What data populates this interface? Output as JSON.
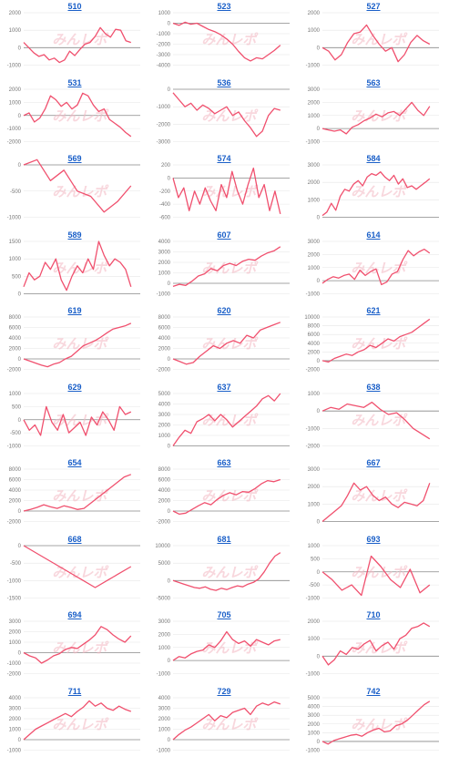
{
  "page": {
    "watermark": "みんレポ"
  },
  "style": {
    "line_color": "#f0506e",
    "title_color": "#1a5fc8",
    "zero_line": "#888888",
    "grid": "#e6e6e6"
  },
  "chart_data": [
    {
      "type": "line",
      "title": "510",
      "ylim": [
        -1000,
        2000
      ],
      "yticks": [
        -1000,
        0,
        1000,
        2000
      ],
      "values": [
        300,
        0,
        -300,
        -500,
        -400,
        -700,
        -600,
        -850,
        -700,
        -200,
        -450,
        -100,
        200,
        300,
        650,
        1150,
        800,
        600,
        1050,
        1000,
        400,
        300
      ]
    },
    {
      "type": "line",
      "title": "523",
      "ylim": [
        -4000,
        1000
      ],
      "yticks": [
        -4000,
        -3000,
        -2000,
        -1000,
        0,
        1000
      ],
      "values": [
        0,
        -200,
        100,
        -100,
        0,
        -300,
        -600,
        -800,
        -1100,
        -1500,
        -2000,
        -2700,
        -3300,
        -3600,
        -3300,
        -3400,
        -3000,
        -2600,
        -2100
      ]
    },
    {
      "type": "line",
      "title": "527",
      "ylim": [
        -1000,
        2000
      ],
      "yticks": [
        -1000,
        0,
        1000,
        2000
      ],
      "values": [
        0,
        -200,
        -700,
        -400,
        300,
        800,
        900,
        1300,
        700,
        200,
        -200,
        0,
        -800,
        -400,
        300,
        700,
        400,
        200
      ]
    },
    {
      "type": "line",
      "title": "531",
      "ylim": [
        -2000,
        2000
      ],
      "yticks": [
        -2000,
        -1000,
        0,
        1000,
        2000
      ],
      "values": [
        0,
        200,
        -500,
        -200,
        500,
        1500,
        1200,
        700,
        1000,
        500,
        800,
        1700,
        1500,
        800,
        300,
        500,
        -300,
        -600,
        -900,
        -1300,
        -1600
      ]
    },
    {
      "type": "line",
      "title": "536",
      "ylim": [
        -3000,
        0
      ],
      "yticks": [
        -3000,
        -2000,
        -1000,
        0
      ],
      "values": [
        -200,
        -600,
        -1000,
        -800,
        -1200,
        -900,
        -1100,
        -1400,
        -1200,
        -1000,
        -1500,
        -1300,
        -1800,
        -2200,
        -2700,
        -2400,
        -1500,
        -1100,
        -1200
      ]
    },
    {
      "type": "line",
      "title": "563",
      "ylim": [
        -1000,
        3000
      ],
      "yticks": [
        -1000,
        0,
        1000,
        2000,
        3000
      ],
      "values": [
        0,
        -100,
        -200,
        -100,
        -400,
        100,
        300,
        600,
        800,
        1100,
        900,
        1200,
        1300,
        1000,
        1500,
        2000,
        1400,
        1000,
        1700
      ]
    },
    {
      "type": "line",
      "title": "569",
      "ylim": [
        -1000,
        0
      ],
      "yticks": [
        -1000,
        -500,
        0
      ],
      "values": [
        0,
        100,
        -300,
        -100,
        -500,
        -600,
        -900,
        -700,
        -400
      ]
    },
    {
      "type": "line",
      "title": "574",
      "ylim": [
        -600,
        200
      ],
      "yticks": [
        -600,
        -400,
        -200,
        0,
        200
      ],
      "values": [
        0,
        -300,
        -150,
        -500,
        -200,
        -400,
        -150,
        -350,
        -500,
        -100,
        -300,
        100,
        -200,
        -400,
        -100,
        150,
        -300,
        -100,
        -500,
        -200,
        -550
      ]
    },
    {
      "type": "line",
      "title": "584",
      "ylim": [
        0,
        3000
      ],
      "yticks": [
        0,
        1000,
        2000,
        3000
      ],
      "values": [
        100,
        300,
        800,
        400,
        1200,
        1600,
        1500,
        1900,
        2100,
        1800,
        2300,
        2500,
        2400,
        2600,
        2300,
        2100,
        2400,
        1900,
        2200,
        1700,
        1800,
        1600,
        1800,
        2000,
        2200
      ]
    },
    {
      "type": "line",
      "title": "589",
      "ylim": [
        0,
        1500
      ],
      "yticks": [
        0,
        500,
        1000,
        1500
      ],
      "values": [
        200,
        600,
        400,
        500,
        900,
        700,
        1000,
        400,
        100,
        500,
        800,
        600,
        1000,
        700,
        1500,
        1100,
        800,
        1000,
        900,
        700,
        200
      ]
    },
    {
      "type": "line",
      "title": "607",
      "ylim": [
        -1000,
        4000
      ],
      "yticks": [
        -1000,
        0,
        1000,
        2000,
        3000,
        4000
      ],
      "values": [
        -300,
        -100,
        -200,
        200,
        700,
        900,
        1400,
        1200,
        1700,
        1900,
        1700,
        2100,
        2300,
        2200,
        2600,
        2900,
        3100,
        3500
      ]
    },
    {
      "type": "line",
      "title": "614",
      "ylim": [
        -1000,
        3000
      ],
      "yticks": [
        -1000,
        0,
        1000,
        2000,
        3000
      ],
      "values": [
        -200,
        100,
        300,
        200,
        400,
        500,
        100,
        800,
        400,
        700,
        900,
        -300,
        -100,
        500,
        700,
        1600,
        2300,
        1900,
        2200,
        2400,
        2100
      ]
    },
    {
      "type": "line",
      "title": "619",
      "ylim": [
        -2000,
        8000
      ],
      "yticks": [
        -2000,
        0,
        2000,
        4000,
        6000,
        8000
      ],
      "values": [
        0,
        -400,
        -800,
        -1200,
        -1500,
        -1000,
        -700,
        0,
        500,
        1500,
        2500,
        3000,
        3500,
        4200,
        5000,
        5700,
        6000,
        6300,
        6800
      ]
    },
    {
      "type": "line",
      "title": "620",
      "ylim": [
        -2000,
        8000
      ],
      "yticks": [
        -2000,
        0,
        2000,
        4000,
        6000,
        8000
      ],
      "values": [
        0,
        -500,
        -1000,
        -700,
        500,
        1500,
        2500,
        2000,
        3000,
        3500,
        3000,
        4500,
        4000,
        5500,
        6000,
        6500,
        7000
      ]
    },
    {
      "type": "line",
      "title": "621",
      "ylim": [
        -2000,
        10000
      ],
      "yticks": [
        -2000,
        0,
        2000,
        4000,
        6000,
        8000,
        10000
      ],
      "values": [
        0,
        -300,
        500,
        1000,
        1500,
        1200,
        2000,
        2500,
        3500,
        3000,
        4000,
        5000,
        4500,
        5500,
        6000,
        6500,
        7500,
        8500,
        9500
      ]
    },
    {
      "type": "line",
      "title": "629",
      "ylim": [
        -1000,
        1000
      ],
      "yticks": [
        -1000,
        -500,
        0,
        500,
        1000
      ],
      "values": [
        0,
        -400,
        -200,
        -600,
        500,
        -100,
        -400,
        200,
        -500,
        -300,
        -100,
        -600,
        100,
        -200,
        300,
        0,
        -400,
        500,
        200,
        300
      ]
    },
    {
      "type": "line",
      "title": "637",
      "ylim": [
        0,
        5000
      ],
      "yticks": [
        0,
        1000,
        2000,
        3000,
        4000,
        5000
      ],
      "values": [
        0,
        800,
        1500,
        1200,
        2300,
        2600,
        3000,
        2400,
        3000,
        2500,
        1800,
        2300,
        2800,
        3300,
        3800,
        4500,
        4800,
        4300,
        5000
      ]
    },
    {
      "type": "line",
      "title": "638",
      "ylim": [
        -2000,
        1000
      ],
      "yticks": [
        -2000,
        -1000,
        0,
        1000
      ],
      "values": [
        0,
        200,
        100,
        400,
        300,
        200,
        500,
        100,
        -200,
        -100,
        -500,
        -1000,
        -1300,
        -1600
      ]
    },
    {
      "type": "line",
      "title": "654",
      "ylim": [
        -2000,
        8000
      ],
      "yticks": [
        -2000,
        0,
        2000,
        4000,
        6000,
        8000
      ],
      "values": [
        0,
        300,
        700,
        1200,
        800,
        500,
        1000,
        700,
        300,
        500,
        1500,
        2500,
        3500,
        4500,
        5500,
        6500,
        7000
      ]
    },
    {
      "type": "line",
      "title": "663",
      "ylim": [
        -2000,
        8000
      ],
      "yticks": [
        -2000,
        0,
        2000,
        4000,
        6000,
        8000
      ],
      "values": [
        0,
        -600,
        -400,
        300,
        1000,
        1600,
        1200,
        2200,
        3000,
        3500,
        3100,
        3700,
        3600,
        4300,
        5200,
        5800,
        5600,
        6000
      ]
    },
    {
      "type": "line",
      "title": "667",
      "ylim": [
        0,
        3000
      ],
      "yticks": [
        0,
        1000,
        2000,
        3000
      ],
      "values": [
        0,
        300,
        600,
        900,
        1500,
        2200,
        1800,
        2000,
        1500,
        1200,
        1400,
        1000,
        800,
        1100,
        1000,
        900,
        1200,
        2200
      ]
    },
    {
      "type": "line",
      "title": "668",
      "ylim": [
        -1500,
        0
      ],
      "yticks": [
        -1500,
        -1000,
        -500,
        0
      ],
      "values": [
        0,
        -300,
        -600,
        -900,
        -1200,
        -900,
        -600
      ]
    },
    {
      "type": "line",
      "title": "681",
      "ylim": [
        -5000,
        10000
      ],
      "yticks": [
        -5000,
        0,
        5000,
        10000
      ],
      "values": [
        0,
        -500,
        -1000,
        -1500,
        -2000,
        -2200,
        -1800,
        -2500,
        -2800,
        -2200,
        -2600,
        -2000,
        -1500,
        -1800,
        -1000,
        -500,
        500,
        2500,
        5000,
        7000,
        8000
      ]
    },
    {
      "type": "line",
      "title": "693",
      "ylim": [
        -1000,
        1000
      ],
      "yticks": [
        -1000,
        -500,
        0,
        500,
        1000
      ],
      "values": [
        0,
        -300,
        -700,
        -500,
        -900,
        600,
        200,
        -300,
        -600,
        100,
        -800,
        -500
      ]
    },
    {
      "type": "line",
      "title": "694",
      "ylim": [
        -2000,
        3000
      ],
      "yticks": [
        -2000,
        -1000,
        0,
        1000,
        2000,
        3000
      ],
      "values": [
        0,
        -300,
        -500,
        -1000,
        -700,
        -300,
        -100,
        300,
        500,
        400,
        800,
        1200,
        1700,
        2500,
        2200,
        1700,
        1300,
        1000,
        1600
      ]
    },
    {
      "type": "line",
      "title": "705",
      "ylim": [
        -1000,
        3000
      ],
      "yticks": [
        -1000,
        0,
        1000,
        2000,
        3000
      ],
      "values": [
        0,
        300,
        200,
        500,
        700,
        800,
        1200,
        1000,
        1500,
        2200,
        1600,
        1300,
        1500,
        1100,
        1600,
        1400,
        1200,
        1500,
        1600
      ]
    },
    {
      "type": "line",
      "title": "710",
      "ylim": [
        -1000,
        2000
      ],
      "yticks": [
        -1000,
        0,
        1000,
        2000
      ],
      "values": [
        0,
        -500,
        -200,
        300,
        100,
        500,
        400,
        700,
        900,
        300,
        600,
        800,
        400,
        1000,
        1200,
        1600,
        1700,
        1900,
        1700
      ]
    },
    {
      "type": "line",
      "title": "711",
      "ylim": [
        -1000,
        4000
      ],
      "yticks": [
        -1000,
        0,
        1000,
        2000,
        3000,
        4000
      ],
      "values": [
        0,
        500,
        1000,
        1300,
        1600,
        1900,
        2200,
        2500,
        2200,
        2700,
        3100,
        3700,
        3200,
        3500,
        3000,
        2800,
        3200,
        2900,
        2700
      ]
    },
    {
      "type": "line",
      "title": "729",
      "ylim": [
        -1000,
        4000
      ],
      "yticks": [
        -1000,
        0,
        1000,
        2000,
        3000,
        4000
      ],
      "values": [
        0,
        500,
        900,
        1200,
        1600,
        2000,
        2400,
        1800,
        2300,
        2100,
        2600,
        2800,
        3000,
        2400,
        3200,
        3500,
        3300,
        3600,
        3400
      ]
    },
    {
      "type": "line",
      "title": "742",
      "ylim": [
        -1000,
        5000
      ],
      "yticks": [
        -1000,
        0,
        1000,
        2000,
        3000,
        4000,
        5000
      ],
      "values": [
        0,
        -300,
        100,
        300,
        500,
        700,
        800,
        600,
        1000,
        1300,
        1500,
        1100,
        1200,
        1800,
        2000,
        2400,
        3000,
        3600,
        4200,
        4600
      ]
    }
  ]
}
